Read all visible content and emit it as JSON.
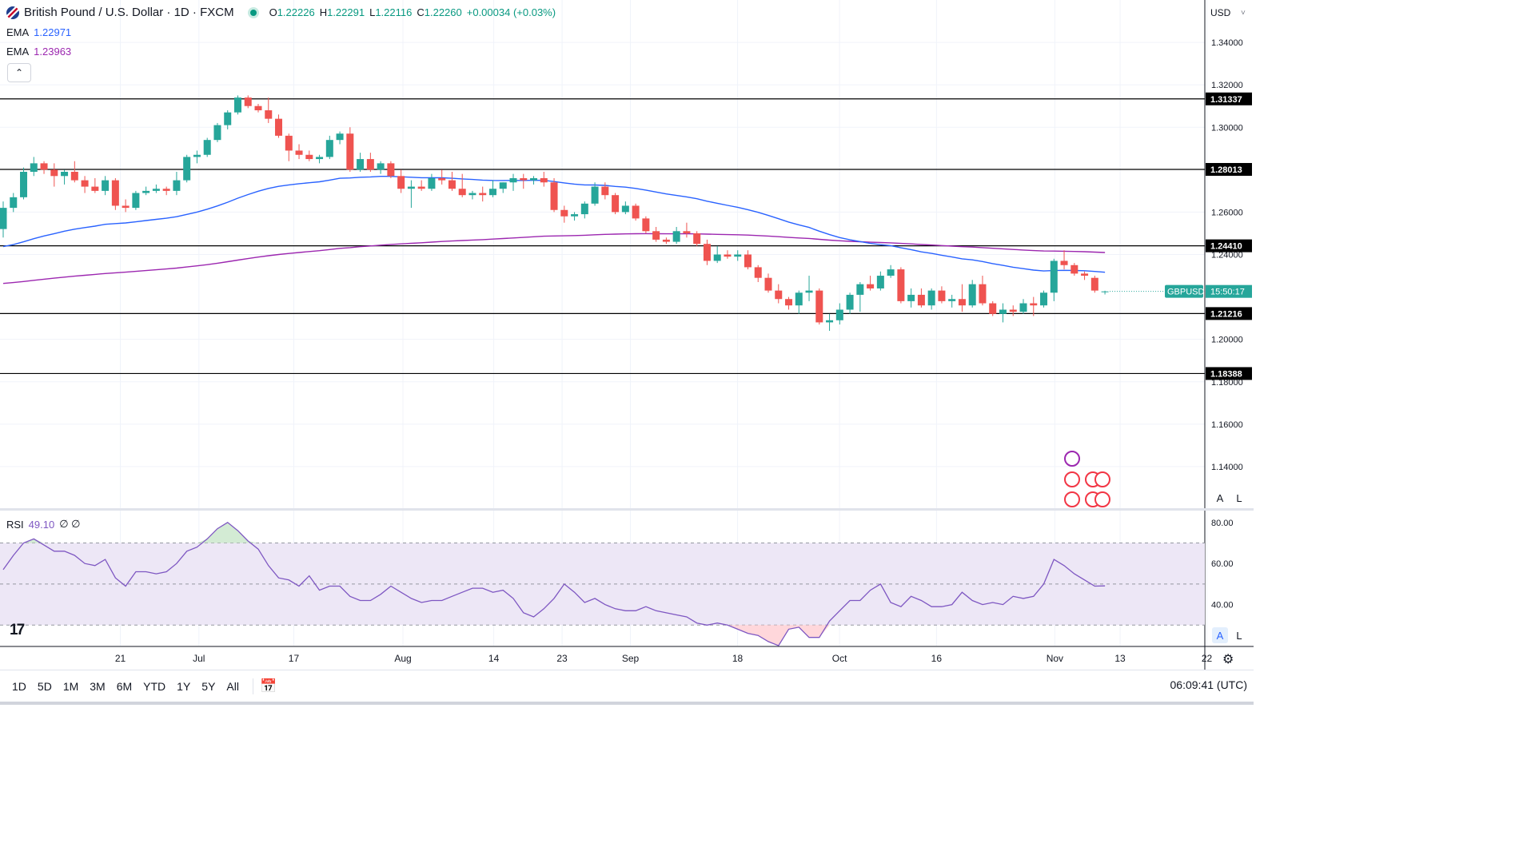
{
  "header": {
    "symbol_title": "British Pound / U.S. Dollar · 1D · FXCM",
    "open_label": "O",
    "open": "1.22226",
    "high_label": "H",
    "high": "1.22291",
    "low_label": "L",
    "low": "1.22116",
    "close_label": "C",
    "close": "1.22260",
    "change": "+0.00034 (+0.03%)"
  },
  "indicators": {
    "ema1_label": "EMA",
    "ema1_value": "1.22971",
    "ema2_label": "EMA",
    "ema2_value": "1.23963",
    "rsi_label": "RSI",
    "rsi_value": "49.10",
    "rsi_extra": "∅ ∅"
  },
  "price_scale": {
    "currency": "USD",
    "auto_label": "A",
    "log_label": "L"
  },
  "current_price": {
    "symbol": "GBPUSD",
    "countdown": "15:50:17"
  },
  "bottom": {
    "ranges": [
      "1D",
      "5D",
      "1M",
      "3M",
      "6M",
      "YTD",
      "1Y",
      "5Y",
      "All"
    ],
    "clock": "06:09:41 (UTC)"
  },
  "colors": {
    "up": "#26a69a",
    "down": "#ef5350",
    "ema_fast": "#2962ff",
    "ema_slow": "#9c27b0",
    "rsi": "#7e57c2",
    "rsi_band": "#ede7f6"
  },
  "chart_data": [
    {
      "type": "candlestick",
      "title": "British Pound / U.S. Dollar · 1D · FXCM",
      "ylim": [
        1.12,
        1.36
      ],
      "yticks": [
        1.34,
        1.32,
        1.3,
        1.26,
        1.24,
        1.2,
        1.18,
        1.16,
        1.14
      ],
      "x_tick_labels": [
        "21",
        "Jul",
        "17",
        "Aug",
        "14",
        "23",
        "Sep",
        "18",
        "Oct",
        "16",
        "Nov",
        "13",
        "22"
      ],
      "horizontal_levels": [
        1.31337,
        1.28013,
        1.2441,
        1.21216,
        1.18388
      ],
      "horizontal_level_labels": [
        "1.31337",
        "1.28013",
        "1.24410",
        "1.21216",
        "1.18388"
      ],
      "candles": [
        [
          1.252,
          1.265,
          1.248,
          1.262
        ],
        [
          1.262,
          1.269,
          1.26,
          1.267
        ],
        [
          1.267,
          1.281,
          1.266,
          1.279
        ],
        [
          1.279,
          1.286,
          1.277,
          1.283
        ],
        [
          1.283,
          1.284,
          1.278,
          1.28
        ],
        [
          1.28,
          1.283,
          1.272,
          1.277
        ],
        [
          1.277,
          1.28,
          1.273,
          1.279
        ],
        [
          1.279,
          1.284,
          1.274,
          1.275
        ],
        [
          1.275,
          1.277,
          1.269,
          1.272
        ],
        [
          1.272,
          1.276,
          1.269,
          1.27
        ],
        [
          1.27,
          1.277,
          1.268,
          1.275
        ],
        [
          1.275,
          1.276,
          1.261,
          1.263
        ],
        [
          1.263,
          1.266,
          1.26,
          1.262
        ],
        [
          1.262,
          1.27,
          1.261,
          1.269
        ],
        [
          1.269,
          1.272,
          1.268,
          1.27
        ],
        [
          1.27,
          1.273,
          1.269,
          1.271
        ],
        [
          1.271,
          1.272,
          1.268,
          1.27
        ],
        [
          1.27,
          1.279,
          1.268,
          1.275
        ],
        [
          1.275,
          1.287,
          1.274,
          1.286
        ],
        [
          1.286,
          1.289,
          1.283,
          1.287
        ],
        [
          1.287,
          1.295,
          1.286,
          1.294
        ],
        [
          1.294,
          1.302,
          1.293,
          1.301
        ],
        [
          1.301,
          1.308,
          1.299,
          1.307
        ],
        [
          1.307,
          1.315,
          1.306,
          1.314
        ],
        [
          1.314,
          1.315,
          1.309,
          1.31
        ],
        [
          1.31,
          1.311,
          1.307,
          1.308
        ],
        [
          1.308,
          1.314,
          1.302,
          1.304
        ],
        [
          1.304,
          1.306,
          1.295,
          1.296
        ],
        [
          1.296,
          1.297,
          1.284,
          1.289
        ],
        [
          1.289,
          1.292,
          1.285,
          1.287
        ],
        [
          1.287,
          1.289,
          1.284,
          1.285
        ],
        [
          1.285,
          1.287,
          1.283,
          1.286
        ],
        [
          1.286,
          1.296,
          1.285,
          1.294
        ],
        [
          1.294,
          1.298,
          1.292,
          1.297
        ],
        [
          1.297,
          1.3,
          1.279,
          1.28
        ],
        [
          1.28,
          1.288,
          1.279,
          1.285
        ],
        [
          1.285,
          1.288,
          1.279,
          1.28
        ],
        [
          1.28,
          1.284,
          1.278,
          1.283
        ],
        [
          1.283,
          1.284,
          1.276,
          1.277
        ],
        [
          1.277,
          1.28,
          1.269,
          1.271
        ],
        [
          1.271,
          1.275,
          1.262,
          1.272
        ],
        [
          1.272,
          1.275,
          1.27,
          1.271
        ],
        [
          1.271,
          1.278,
          1.27,
          1.276
        ],
        [
          1.276,
          1.28,
          1.273,
          1.275
        ],
        [
          1.275,
          1.279,
          1.27,
          1.271
        ],
        [
          1.271,
          1.278,
          1.267,
          1.268
        ],
        [
          1.268,
          1.27,
          1.266,
          1.269
        ],
        [
          1.269,
          1.272,
          1.265,
          1.268
        ],
        [
          1.268,
          1.275,
          1.267,
          1.271
        ],
        [
          1.271,
          1.274,
          1.269,
          1.274
        ],
        [
          1.274,
          1.278,
          1.27,
          1.276
        ],
        [
          1.276,
          1.278,
          1.271,
          1.275
        ],
        [
          1.275,
          1.277,
          1.273,
          1.276
        ],
        [
          1.276,
          1.279,
          1.272,
          1.274
        ],
        [
          1.274,
          1.276,
          1.26,
          1.261
        ],
        [
          1.261,
          1.263,
          1.255,
          1.258
        ],
        [
          1.258,
          1.26,
          1.256,
          1.259
        ],
        [
          1.259,
          1.265,
          1.257,
          1.264
        ],
        [
          1.264,
          1.274,
          1.263,
          1.272
        ],
        [
          1.272,
          1.274,
          1.266,
          1.268
        ],
        [
          1.268,
          1.269,
          1.259,
          1.26
        ],
        [
          1.26,
          1.265,
          1.259,
          1.263
        ],
        [
          1.263,
          1.264,
          1.256,
          1.257
        ],
        [
          1.257,
          1.258,
          1.25,
          1.251
        ],
        [
          1.251,
          1.253,
          1.246,
          1.247
        ],
        [
          1.247,
          1.248,
          1.245,
          1.246
        ],
        [
          1.246,
          1.253,
          1.245,
          1.251
        ],
        [
          1.251,
          1.255,
          1.248,
          1.25
        ],
        [
          1.25,
          1.251,
          1.244,
          1.245
        ],
        [
          1.245,
          1.247,
          1.235,
          1.237
        ],
        [
          1.237,
          1.244,
          1.236,
          1.24
        ],
        [
          1.24,
          1.242,
          1.238,
          1.239
        ],
        [
          1.239,
          1.242,
          1.237,
          1.24
        ],
        [
          1.24,
          1.242,
          1.233,
          1.234
        ],
        [
          1.234,
          1.235,
          1.227,
          1.229
        ],
        [
          1.229,
          1.231,
          1.222,
          1.223
        ],
        [
          1.223,
          1.226,
          1.217,
          1.219
        ],
        [
          1.219,
          1.22,
          1.214,
          1.216
        ],
        [
          1.216,
          1.223,
          1.212,
          1.222
        ],
        [
          1.222,
          1.23,
          1.218,
          1.223
        ],
        [
          1.223,
          1.224,
          1.207,
          1.208
        ],
        [
          1.208,
          1.212,
          1.204,
          1.209
        ],
        [
          1.209,
          1.217,
          1.207,
          1.214
        ],
        [
          1.214,
          1.222,
          1.212,
          1.221
        ],
        [
          1.221,
          1.227,
          1.213,
          1.226
        ],
        [
          1.226,
          1.23,
          1.223,
          1.224
        ],
        [
          1.224,
          1.232,
          1.223,
          1.23
        ],
        [
          1.23,
          1.235,
          1.229,
          1.233
        ],
        [
          1.233,
          1.234,
          1.217,
          1.218
        ],
        [
          1.218,
          1.224,
          1.215,
          1.221
        ],
        [
          1.221,
          1.224,
          1.215,
          1.216
        ],
        [
          1.216,
          1.224,
          1.214,
          1.223
        ],
        [
          1.223,
          1.225,
          1.217,
          1.218
        ],
        [
          1.218,
          1.221,
          1.215,
          1.219
        ],
        [
          1.219,
          1.226,
          1.213,
          1.216
        ],
        [
          1.216,
          1.228,
          1.215,
          1.226
        ],
        [
          1.226,
          1.23,
          1.216,
          1.217
        ],
        [
          1.217,
          1.218,
          1.211,
          1.212
        ],
        [
          1.212,
          1.217,
          1.208,
          1.214
        ],
        [
          1.214,
          1.216,
          1.211,
          1.213
        ],
        [
          1.213,
          1.219,
          1.212,
          1.217
        ],
        [
          1.217,
          1.22,
          1.211,
          1.216
        ],
        [
          1.216,
          1.223,
          1.215,
          1.222
        ],
        [
          1.222,
          1.238,
          1.218,
          1.237
        ],
        [
          1.237,
          1.242,
          1.233,
          1.235
        ],
        [
          1.235,
          1.236,
          1.23,
          1.231
        ],
        [
          1.231,
          1.232,
          1.228,
          1.23
        ],
        [
          1.229,
          1.23,
          1.222,
          1.223
        ],
        [
          1.22226,
          1.22291,
          1.22116,
          1.2226
        ]
      ],
      "ema_fast_start": 1.243,
      "ema_slow_start": 1.226
    },
    {
      "type": "line",
      "title": "RSI",
      "ylim": [
        20,
        85
      ],
      "yticks": [
        80,
        60,
        40
      ],
      "ytick_labels": [
        "80.00",
        "60.00",
        "40.00"
      ],
      "levels": [
        70,
        50,
        30
      ],
      "values": [
        57,
        64,
        70,
        72,
        69,
        66,
        66,
        64,
        60,
        59,
        62,
        53,
        49,
        56,
        56,
        55,
        56,
        60,
        66,
        68,
        72,
        77,
        80,
        76,
        71,
        67,
        59,
        53,
        52,
        49,
        54,
        47,
        49,
        49,
        44,
        42,
        42,
        45,
        49,
        46,
        43,
        41,
        42,
        42,
        44,
        46,
        48,
        48,
        46,
        47,
        43,
        36,
        34,
        38,
        43,
        50,
        46,
        41,
        43,
        40,
        38,
        37,
        37,
        39,
        37,
        36,
        35,
        34,
        31,
        30,
        31,
        30,
        28,
        26,
        25,
        22,
        20,
        28,
        29,
        24,
        24,
        32,
        37,
        42,
        42,
        47,
        50,
        41,
        39,
        44,
        42,
        39,
        39,
        40,
        46,
        42,
        40,
        41,
        40,
        44,
        43,
        44,
        50,
        62,
        59,
        55,
        52,
        49,
        49.1
      ]
    }
  ]
}
